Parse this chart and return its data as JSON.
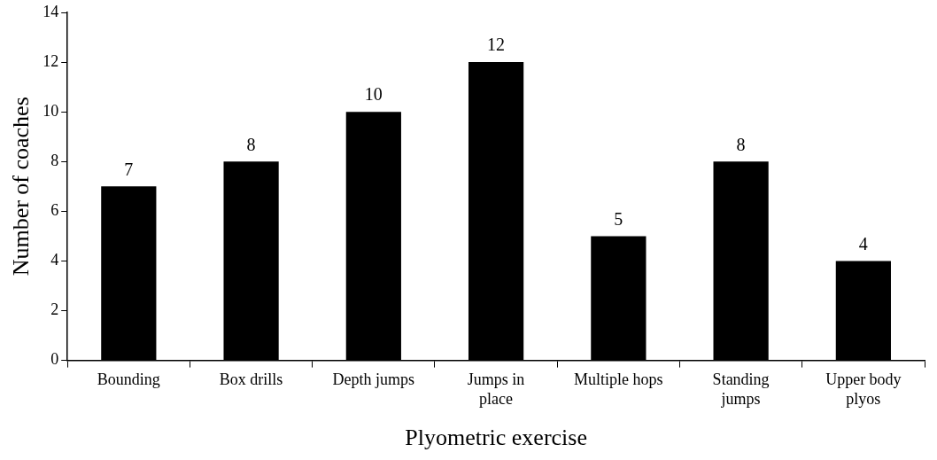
{
  "chart_data": {
    "type": "bar",
    "xlabel": "Plyometric exercise",
    "ylabel": "Number of coaches",
    "categories": [
      "Bounding",
      "Box drills",
      "Depth jumps",
      "Jumps in place",
      "Multiple hops",
      "Standing jumps",
      "Upper body plyos"
    ],
    "values": [
      7,
      8,
      10,
      12,
      5,
      8,
      4
    ],
    "color": "#000000",
    "data_labels": true,
    "ylim": [
      0,
      14
    ],
    "yticks": [
      0,
      2,
      4,
      6,
      8,
      10,
      12,
      14
    ],
    "grid": false,
    "legend": false
  }
}
